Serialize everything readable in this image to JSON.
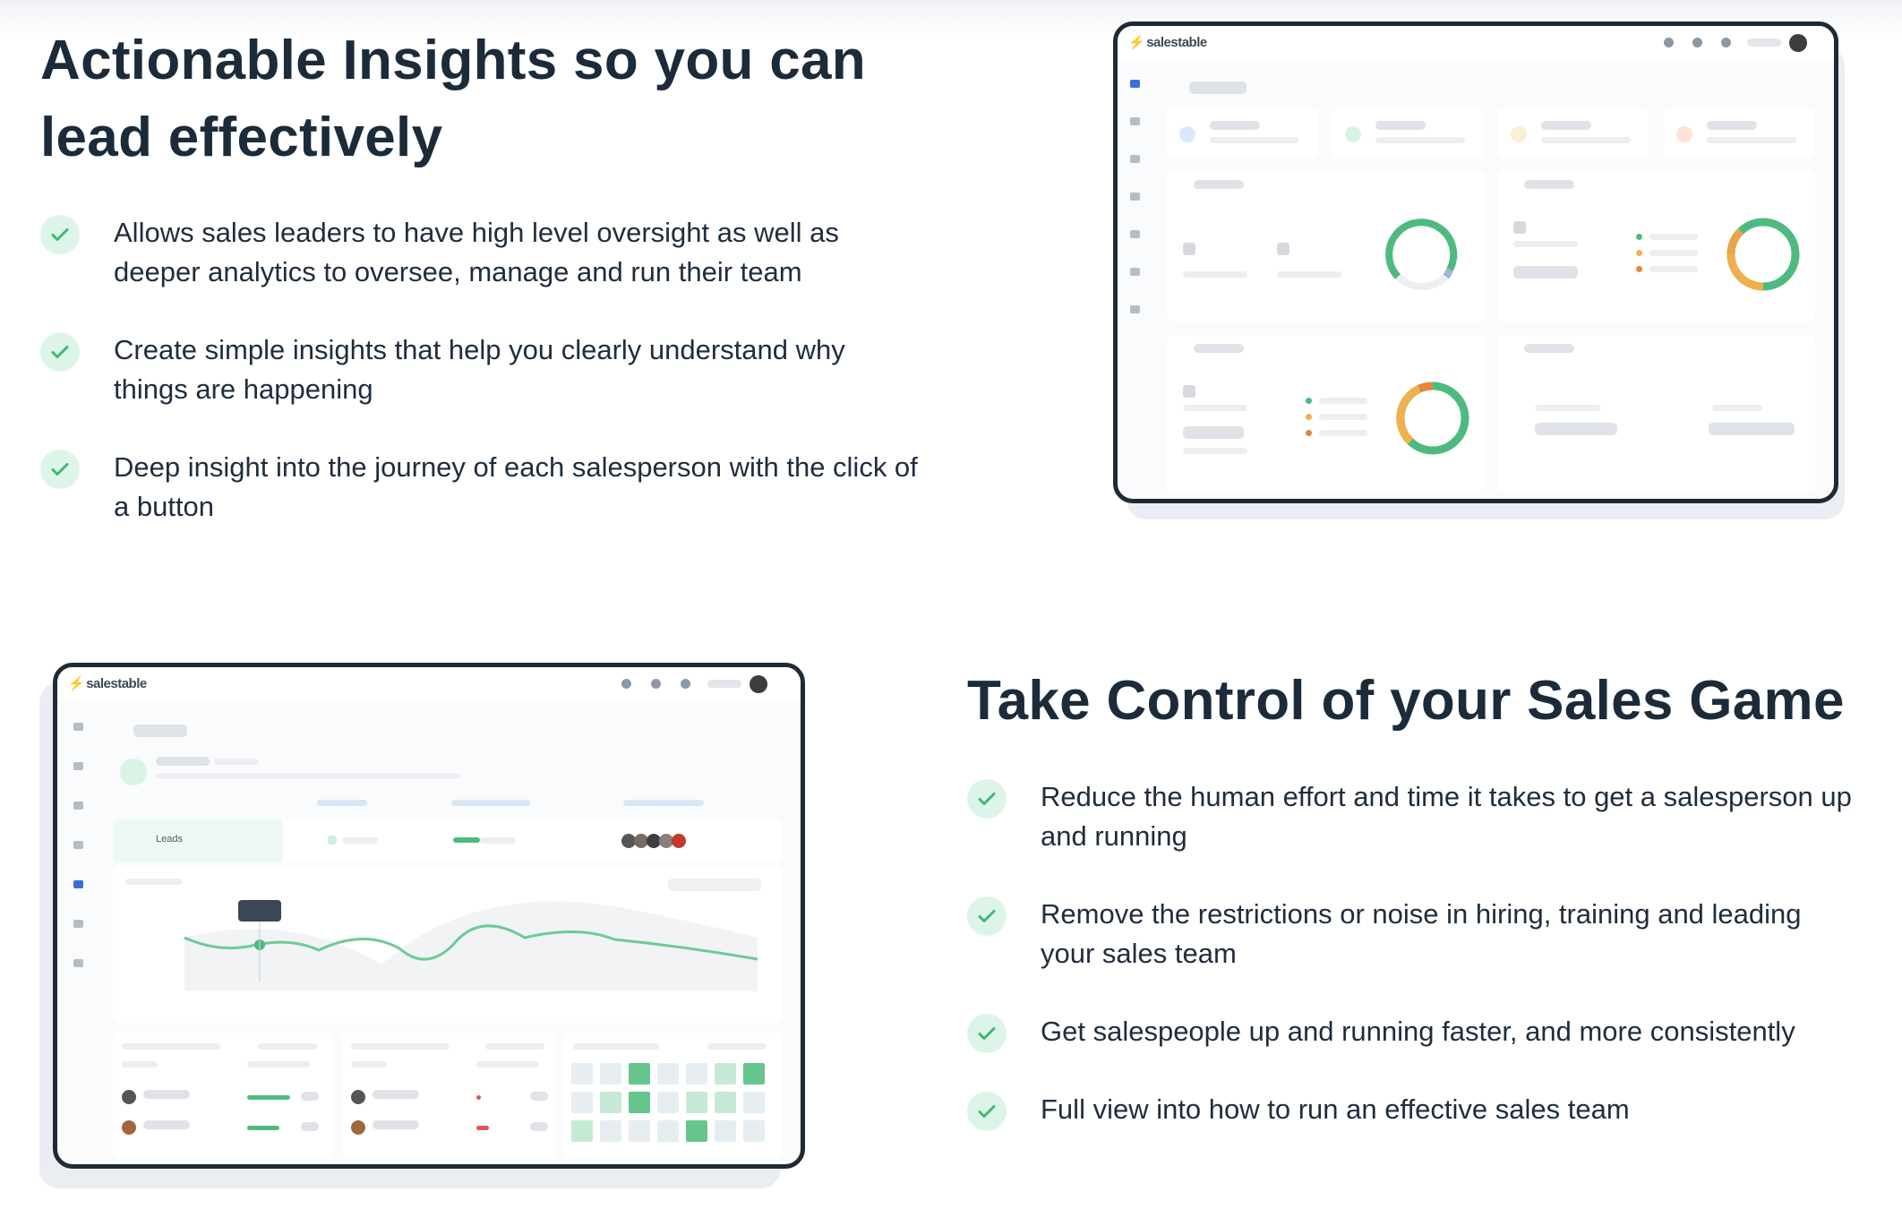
{
  "section1": {
    "title": "Actionable Insights so you can lead effectively",
    "items": [
      "Allows sales leaders to have high level oversight as well as deeper analytics to oversee, manage and run their team",
      "Create simple insights that help you clearly understand why things are happening",
      "Deep insight into the journey of each salesperson with the click of a button"
    ]
  },
  "section2": {
    "title": "Take Control of your Sales Game",
    "items": [
      "Reduce the human effort and time it takes to get a salesperson up and running",
      "Remove the restrictions or noise in hiring, training and leading your sales team",
      "Get salespeople up and running faster, and more consistently",
      "Full view into how to run an effective sales team"
    ]
  },
  "mockup": {
    "logo": "salestable",
    "leads_label": "Leads"
  },
  "colors": {
    "heading": "#1c2b3a",
    "check_bg": "#dcf5e8",
    "check_mark": "#3fb875",
    "device_border": "#1f2a36",
    "chart_line": "#6ccb95",
    "donut_orange": "#f0b04c"
  }
}
